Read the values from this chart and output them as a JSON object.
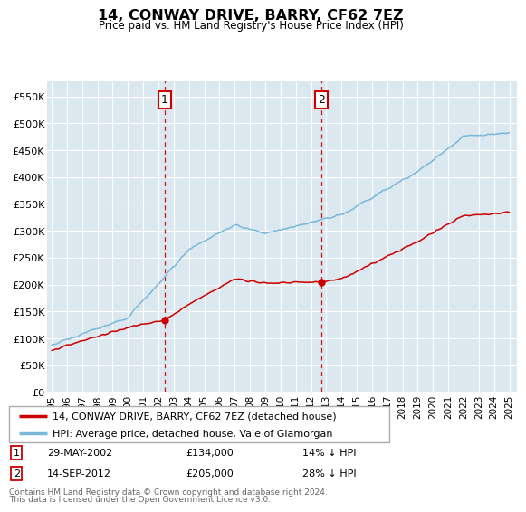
{
  "title": "14, CONWAY DRIVE, BARRY, CF62 7EZ",
  "subtitle": "Price paid vs. HM Land Registry's House Price Index (HPI)",
  "ylabel_ticks": [
    "£0",
    "£50K",
    "£100K",
    "£150K",
    "£200K",
    "£250K",
    "£300K",
    "£350K",
    "£400K",
    "£450K",
    "£500K",
    "£550K"
  ],
  "ytick_values": [
    0,
    50000,
    100000,
    150000,
    200000,
    250000,
    300000,
    350000,
    400000,
    450000,
    500000,
    550000
  ],
  "ylim": [
    0,
    580000
  ],
  "sale1_x": 2002.4,
  "sale1_y": 134000,
  "sale2_x": 2012.7,
  "sale2_y": 205000,
  "legend_line1": "14, CONWAY DRIVE, BARRY, CF62 7EZ (detached house)",
  "legend_line2": "HPI: Average price, detached house, Vale of Glamorgan",
  "table_row1": [
    "1",
    "29-MAY-2002",
    "£134,000",
    "14% ↓ HPI"
  ],
  "table_row2": [
    "2",
    "14-SEP-2012",
    "£205,000",
    "28% ↓ HPI"
  ],
  "footnote1": "Contains HM Land Registry data © Crown copyright and database right 2024.",
  "footnote2": "This data is licensed under the Open Government Licence v3.0.",
  "hpi_color": "#7ab8d9",
  "price_color": "#cc0000",
  "vline_color": "#cc0000",
  "bg_color": "#dce8f0",
  "grid_color": "#ffffff",
  "box_color": "#cc0000",
  "xlim_left": 1994.7,
  "xlim_right": 2025.5
}
